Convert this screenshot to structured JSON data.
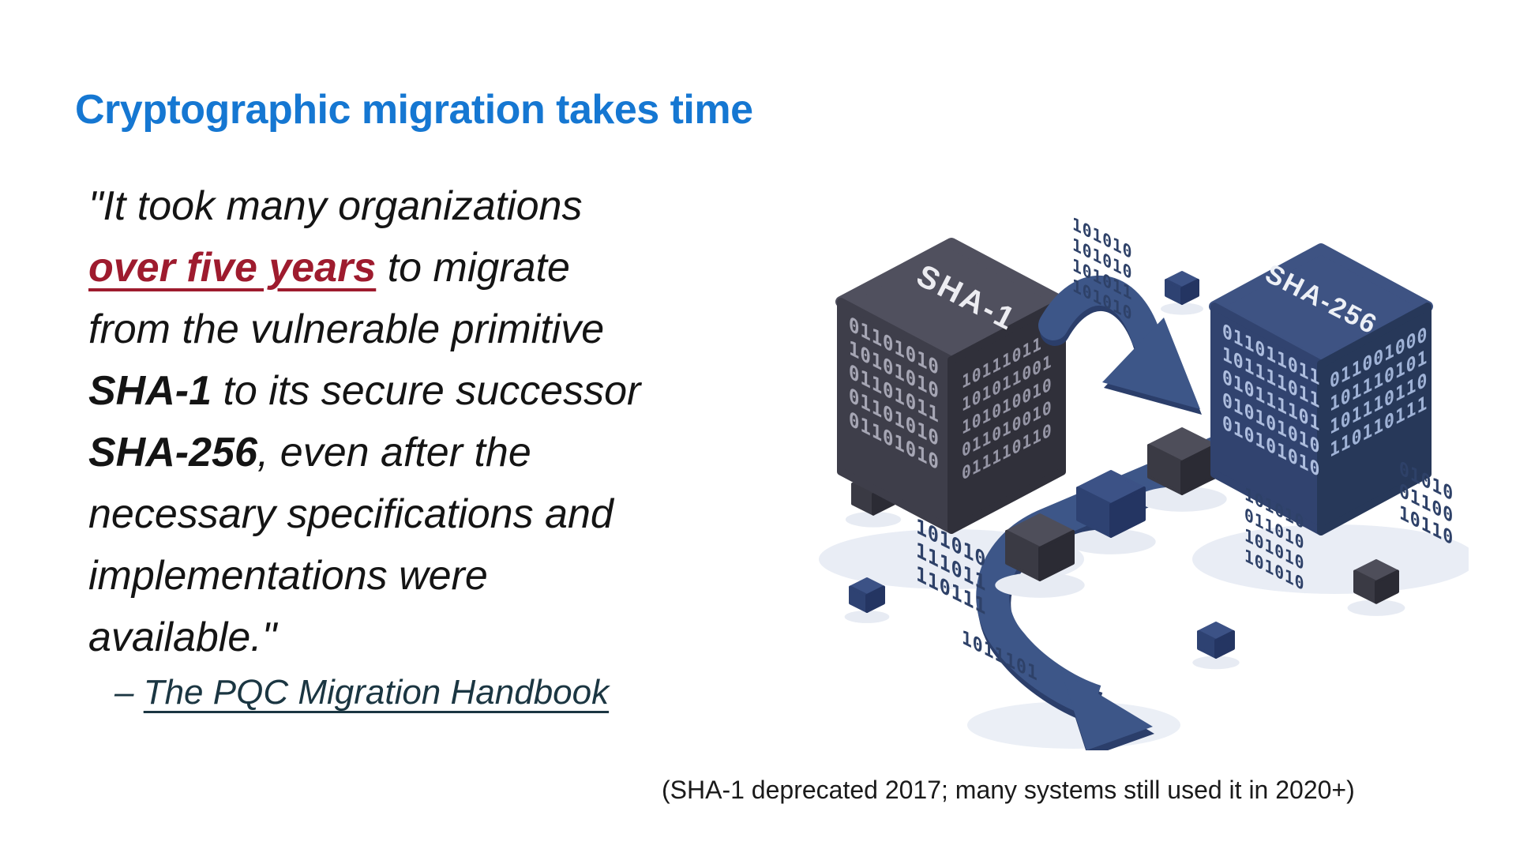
{
  "slide": {
    "title": "Cryptographic migration takes time",
    "caption": "(SHA-1 deprecated 2017; many systems still used it in 2020+)"
  },
  "colors": {
    "title": "#1577D2",
    "highlight": "#9E1B2E",
    "attribution": "#1B3642",
    "accent_blue": "#3D5688",
    "cube_dark": "#3E3E4A",
    "cube_navy": "#31436F"
  },
  "quote": {
    "lines": [
      [
        {
          "t": "\"It took many organizations",
          "s": "n"
        }
      ],
      [
        {
          "t": "over five years",
          "s": "hl"
        },
        {
          "t": " to migrate",
          "s": "n"
        }
      ],
      [
        {
          "t": "from the vulnerable primitive",
          "s": "n"
        }
      ],
      [
        {
          "t": "SHA-1",
          "s": "b"
        },
        {
          "t": " to its secure successor",
          "s": "n"
        }
      ],
      [
        {
          "t": "SHA-256",
          "s": "b"
        },
        {
          "t": ", even after the",
          "s": "n"
        }
      ],
      [
        {
          "t": "necessary specifications and",
          "s": "n"
        }
      ],
      [
        {
          "t": "implementations were",
          "s": "n"
        }
      ],
      [
        {
          "t": "available.\"",
          "s": "n"
        }
      ]
    ],
    "attribution_dash": "– ",
    "attribution": "The PQC Migration Handbook"
  },
  "illustration": {
    "cube1_label": "SHA-1",
    "cube2_label": "SHA-256",
    "cube1_left_binary": [
      "01101010",
      "10101010",
      "01101011",
      "01101010",
      "01101010"
    ],
    "cube1_right_binary": [
      "10111011",
      "101011001",
      "101010010",
      "011010010",
      "011110110"
    ],
    "cube2_left_binary": [
      "011011011",
      "101111011",
      "010111101",
      "010101010",
      "010101010"
    ],
    "cube2_right_binary": [
      "011001000",
      "101110101",
      "101110110",
      "110110111"
    ],
    "binary_blocks": {
      "top": [
        "101010",
        "101010",
        "101011",
        "101010"
      ],
      "bottom_left": [
        "101010",
        "111011",
        "110111"
      ],
      "mid_right": [
        "101010",
        "011010",
        "101010",
        "101010"
      ],
      "far_right": [
        "01010",
        "01100",
        "10110"
      ],
      "bottom_single": [
        "1011101"
      ]
    }
  }
}
